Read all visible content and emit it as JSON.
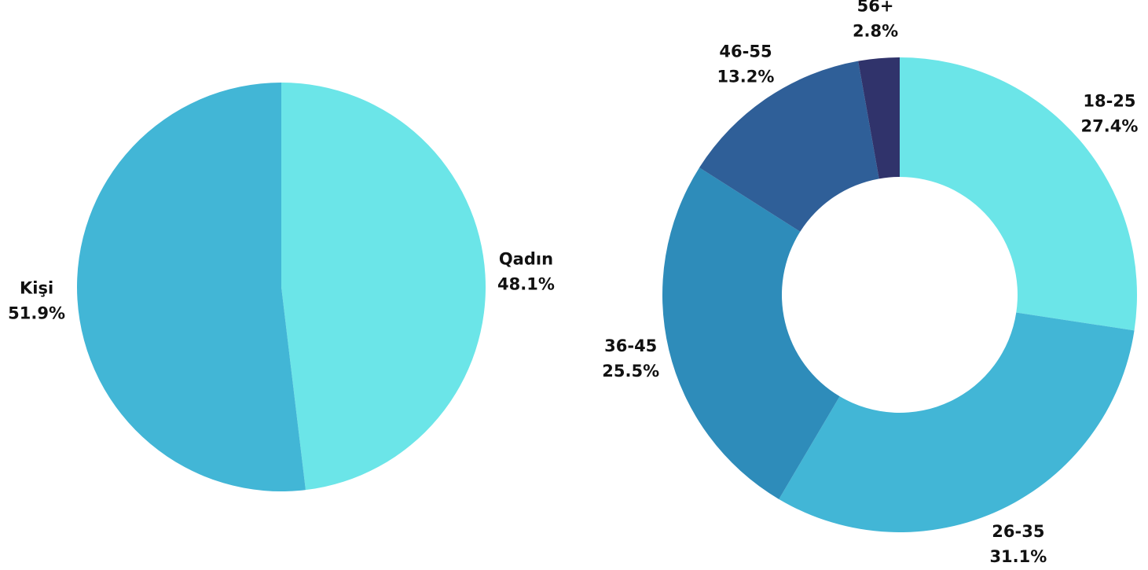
{
  "chart_data": [
    {
      "type": "pie",
      "categories": [
        "Qadın",
        "Kişi"
      ],
      "values": [
        48.1,
        51.9
      ],
      "value_labels": [
        "48.1%",
        "51.9%"
      ],
      "colors": [
        "#6be5e8",
        "#42b6d6"
      ]
    },
    {
      "type": "donut",
      "categories": [
        "18-25",
        "26-35",
        "36-45",
        "46-55",
        "56+"
      ],
      "values": [
        27.4,
        31.1,
        25.5,
        13.2,
        2.8
      ],
      "value_labels": [
        "27.4%",
        "31.1%",
        "25.5%",
        "13.2%",
        "2.8%"
      ],
      "colors": [
        "#6be5e8",
        "#42b6d6",
        "#2e8cba",
        "#2f5f98",
        "#30336b"
      ]
    }
  ]
}
